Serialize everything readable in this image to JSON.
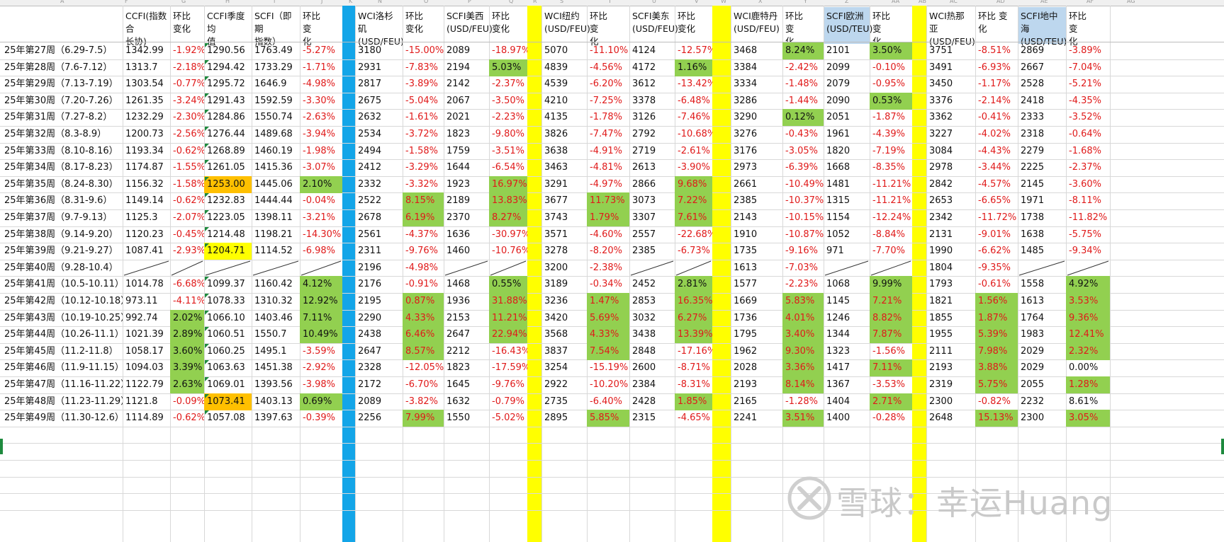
{
  "app": "spreadsheet",
  "column_letters": [
    "A",
    "F",
    "G",
    "H",
    "I",
    "J",
    "K",
    "N",
    "O",
    "P",
    "Q",
    "R",
    "S",
    "T",
    "U",
    "V",
    "W",
    "X",
    "Y",
    "Z",
    "AA",
    "AB",
    "AC",
    "AD",
    "AE",
    "AF",
    "AG"
  ],
  "headers": [
    "CCFI(指数合\n长协)",
    "环比\n变化",
    "CCFI季度均\n值",
    "SCFI（即期\n指数）",
    "环比　　变\n化",
    "WCI洛杉矶\n(USD/FEU)",
    "环比\n变化",
    "SCFI美西\n(USD/FEU)",
    "环比\n变化",
    "WCI纽约\n(USD/FEU)",
    "环比　　变\n化",
    "SCFI美东\n(USD/FEU)",
    "环比\n变化",
    "WCI鹿特丹\n(USD/FEU)",
    "环比　　变\n化",
    "SCFI欧洲\n(USD/TEU)",
    "环比　　变\n化",
    "WCI热那亚\n(USD/FEU)",
    "环比 变化",
    "SCFI地中海\n(USD/TEU)",
    "环比　　变\n化"
  ],
  "rows": [
    {
      "label": "25年第27周（6.29-7.5）",
      "cells": [
        "1342.99",
        "-1.92%",
        "1290.56",
        "1763.49",
        "-5.27%",
        "3180",
        "-15.00%",
        "2089",
        "-18.97%",
        "5070",
        "-11.10%",
        "4124",
        "-12.57%",
        "3468",
        "8.24%",
        "2101",
        "3.50%",
        "3751",
        "-8.51%",
        "2869",
        "-3.89%"
      ]
    },
    {
      "label": "25年第28周（7.6-7.12）",
      "cells": [
        "1313.7",
        "-2.18%",
        "1294.42",
        "1733.29",
        "-1.71%",
        "2931",
        "-7.83%",
        "2194",
        "5.03%",
        "4839",
        "-4.56%",
        "4172",
        "1.16%",
        "3384",
        "-2.42%",
        "2099",
        "-0.10%",
        "3491",
        "-6.93%",
        "2667",
        "-7.04%"
      ]
    },
    {
      "label": "25年第29周（7.13-7.19）",
      "cells": [
        "1303.54",
        "-0.77%",
        "1295.72",
        "1646.9",
        "-4.98%",
        "2817",
        "-3.89%",
        "2142",
        "-2.37%",
        "4539",
        "-6.20%",
        "3612",
        "-13.42%",
        "3334",
        "-1.48%",
        "2079",
        "-0.95%",
        "3450",
        "-1.17%",
        "2528",
        "-5.21%"
      ]
    },
    {
      "label": "25年第30周（7.20-7.26）",
      "cells": [
        "1261.35",
        "-3.24%",
        "1291.43",
        "1592.59",
        "-3.30%",
        "2675",
        "-5.04%",
        "2067",
        "-3.50%",
        "4210",
        "-7.25%",
        "3378",
        "-6.48%",
        "3286",
        "-1.44%",
        "2090",
        "0.53%",
        "3376",
        "-2.14%",
        "2418",
        "-4.35%"
      ]
    },
    {
      "label": "25年第31周（7.27-8.2）",
      "cells": [
        "1232.29",
        "-2.30%",
        "1284.86",
        "1550.74",
        "-2.63%",
        "2632",
        "-1.61%",
        "2021",
        "-2.23%",
        "4135",
        "-1.78%",
        "3126",
        "-7.46%",
        "3290",
        "0.12%",
        "2051",
        "-1.87%",
        "3362",
        "-0.41%",
        "2333",
        "-3.52%"
      ]
    },
    {
      "label": "25年第32周（8.3-8.9）",
      "cells": [
        "1200.73",
        "-2.56%",
        "1276.44",
        "1489.68",
        "-3.94%",
        "2534",
        "-3.72%",
        "1823",
        "-9.80%",
        "3826",
        "-7.47%",
        "2792",
        "-10.68%",
        "3276",
        "-0.43%",
        "1961",
        "-4.39%",
        "3227",
        "-4.02%",
        "2318",
        "-0.64%"
      ]
    },
    {
      "label": "25年第33周（8.10-8.16）",
      "cells": [
        "1193.34",
        "-0.62%",
        "1268.89",
        "1460.19",
        "-1.98%",
        "2494",
        "-1.58%",
        "1759",
        "-3.51%",
        "3638",
        "-4.91%",
        "2719",
        "-2.61%",
        "3176",
        "-3.05%",
        "1820",
        "-7.19%",
        "3084",
        "-4.43%",
        "2279",
        "-1.68%"
      ]
    },
    {
      "label": "25年第34周（8.17-8.23）",
      "cells": [
        "1174.87",
        "-1.55%",
        "1261.05",
        "1415.36",
        "-3.07%",
        "2412",
        "-3.29%",
        "1644",
        "-6.54%",
        "3463",
        "-4.81%",
        "2613",
        "-3.90%",
        "2973",
        "-6.39%",
        "1668",
        "-8.35%",
        "2978",
        "-3.44%",
        "2225",
        "-2.37%"
      ]
    },
    {
      "label": "25年第35周（8.24-8.30）",
      "cells": [
        "1156.32",
        "-1.58%",
        "1253.00",
        "1445.06",
        "2.10%",
        "2332",
        "-3.32%",
        "1923",
        "16.97%",
        "3291",
        "-4.97%",
        "2866",
        "9.68%",
        "2661",
        "-10.49%",
        "1481",
        "-11.21%",
        "2842",
        "-4.57%",
        "2145",
        "-3.60%"
      ]
    },
    {
      "label": "25年第36周（8.31-9.6）",
      "cells": [
        "1149.14",
        "-0.62%",
        "1232.83",
        "1444.44",
        "-0.04%",
        "2522",
        "8.15%",
        "2189",
        "13.83%",
        "3677",
        "11.73%",
        "3073",
        "7.22%",
        "2385",
        "-10.37%",
        "1315",
        "-11.21%",
        "2653",
        "-6.65%",
        "1971",
        "-8.11%"
      ]
    },
    {
      "label": "25年第37周（9.7-9.13）",
      "cells": [
        "1125.3",
        "-2.07%",
        "1223.05",
        "1398.11",
        "-3.21%",
        "2678",
        "6.19%",
        "2370",
        "8.27%",
        "3743",
        "1.79%",
        "3307",
        "7.61%",
        "2143",
        "-10.15%",
        "1154",
        "-12.24%",
        "2342",
        "-11.72%",
        "1738",
        "-11.82%"
      ]
    },
    {
      "label": "25年第38周（9.14-9.20）",
      "cells": [
        "1120.23",
        "-0.45%",
        "1214.48",
        "1198.21",
        "-14.30%",
        "2561",
        "-4.37%",
        "1636",
        "-30.97%",
        "3571",
        "-4.60%",
        "2557",
        "-22.68%",
        "1910",
        "-10.87%",
        "1052",
        "-8.84%",
        "2131",
        "-9.01%",
        "1638",
        "-5.75%"
      ]
    },
    {
      "label": "25年第39周（9.21-9.27）",
      "cells": [
        "1087.41",
        "-2.93%",
        "1204.71",
        "1114.52",
        "-6.98%",
        "2311",
        "-9.76%",
        "1460",
        "-10.76%",
        "3278",
        "-8.20%",
        "2385",
        "-6.73%",
        "1735",
        "-9.16%",
        "971",
        "-7.70%",
        "1990",
        "-6.62%",
        "1485",
        "-9.34%"
      ]
    },
    {
      "label": "25年第40周（9.28-10.4）",
      "cells": [
        "",
        "",
        "",
        "",
        "",
        "2196",
        "-4.98%",
        "",
        "",
        "3200",
        "-2.38%",
        "",
        "",
        "1613",
        "-7.03%",
        "",
        "",
        "1804",
        "-9.35%",
        "",
        ""
      ]
    },
    {
      "label": "25年第41周（10.5-10.11）",
      "cells": [
        "1014.78",
        "-6.68%",
        "1099.37",
        "1160.42",
        "4.12%",
        "2176",
        "-0.91%",
        "1468",
        "0.55%",
        "3189",
        "-0.34%",
        "2452",
        "2.81%",
        "1577",
        "-2.23%",
        "1068",
        "9.99%",
        "1793",
        "-0.61%",
        "1558",
        "4.92%"
      ]
    },
    {
      "label": "25年第42周（10.12-10.18）",
      "cells": [
        "973.11",
        "-4.11%",
        "1078.33",
        "1310.32",
        "12.92%",
        "2195",
        "0.87%",
        "1936",
        "31.88%",
        "3236",
        "1.47%",
        "2853",
        "16.35%",
        "1669",
        "5.83%",
        "1145",
        "7.21%",
        "1821",
        "1.56%",
        "1613",
        "3.53%"
      ]
    },
    {
      "label": "25年第43周（10.19-10.25）",
      "cells": [
        "992.74",
        "2.02%",
        "1066.10",
        "1403.46",
        "7.11%",
        "2290",
        "4.33%",
        "2153",
        "11.21%",
        "3420",
        "5.69%",
        "3032",
        "6.27%",
        "1736",
        "4.01%",
        "1246",
        "8.82%",
        "1855",
        "1.87%",
        "1764",
        "9.36%"
      ]
    },
    {
      "label": "25年第44周（10.26-11.1）",
      "cells": [
        "1021.39",
        "2.89%",
        "1060.51",
        "1550.7",
        "10.49%",
        "2438",
        "6.46%",
        "2647",
        "22.94%",
        "3568",
        "4.33%",
        "3438",
        "13.39%",
        "1795",
        "3.40%",
        "1344",
        "7.87%",
        "1955",
        "5.39%",
        "1983",
        "12.41%"
      ]
    },
    {
      "label": "25年第45周（11.2-11.8）",
      "cells": [
        "1058.17",
        "3.60%",
        "1060.25",
        "1495.1",
        "-3.59%",
        "2647",
        "8.57%",
        "2212",
        "-16.43%",
        "3837",
        "7.54%",
        "2848",
        "-17.16%",
        "1962",
        "9.30%",
        "1323",
        "-1.56%",
        "2111",
        "7.98%",
        "2029",
        "2.32%"
      ]
    },
    {
      "label": "25年第46周（11.9-11.15）",
      "cells": [
        "1094.03",
        "3.39%",
        "1063.63",
        "1451.38",
        "-2.92%",
        "2328",
        "-12.05%",
        "1823",
        "-17.59%",
        "3254",
        "-15.19%",
        "2600",
        "-8.71%",
        "2028",
        "3.36%",
        "1417",
        "7.11%",
        "2193",
        "3.88%",
        "2029",
        "0.00%"
      ]
    },
    {
      "label": "25年第47周（11.16-11.22）",
      "cells": [
        "1122.79",
        "2.63%",
        "1069.01",
        "1393.56",
        "-3.98%",
        "2172",
        "-6.70%",
        "1645",
        "-9.76%",
        "2922",
        "-10.20%",
        "2384",
        "-8.31%",
        "2193",
        "8.14%",
        "1367",
        "-3.53%",
        "2319",
        "5.75%",
        "2055",
        "1.28%"
      ]
    },
    {
      "label": "25年第48周（11.23-11.29）",
      "cells": [
        "1121.8",
        "-0.09%",
        "1073.41",
        "1403.13",
        "0.69%",
        "2089",
        "-3.82%",
        "1632",
        "-0.79%",
        "2735",
        "-6.40%",
        "2428",
        "1.85%",
        "2165",
        "-1.28%",
        "1404",
        "2.71%",
        "2300",
        "-0.82%",
        "2232",
        "8.61%"
      ]
    },
    {
      "label": "25年第49周（11.30-12.6）",
      "cells": [
        "1114.89",
        "-0.62%",
        "1057.08",
        "1397.63",
        "-0.39%",
        "2256",
        "7.99%",
        "1550",
        "-5.02%",
        "2895",
        "5.85%",
        "2315",
        "-4.65%",
        "2241",
        "3.51%",
        "1400",
        "-0.28%",
        "2648",
        "15.13%",
        "2300",
        "3.05%"
      ]
    }
  ],
  "watermark": "雪球：幸运Huang",
  "colors": {
    "green": "#92d050",
    "orange": "#ffc000",
    "yellow": "#ffff00",
    "blue": "#13a5e8",
    "selected": "#bdd7ee",
    "red_text": "#e01a1a"
  }
}
